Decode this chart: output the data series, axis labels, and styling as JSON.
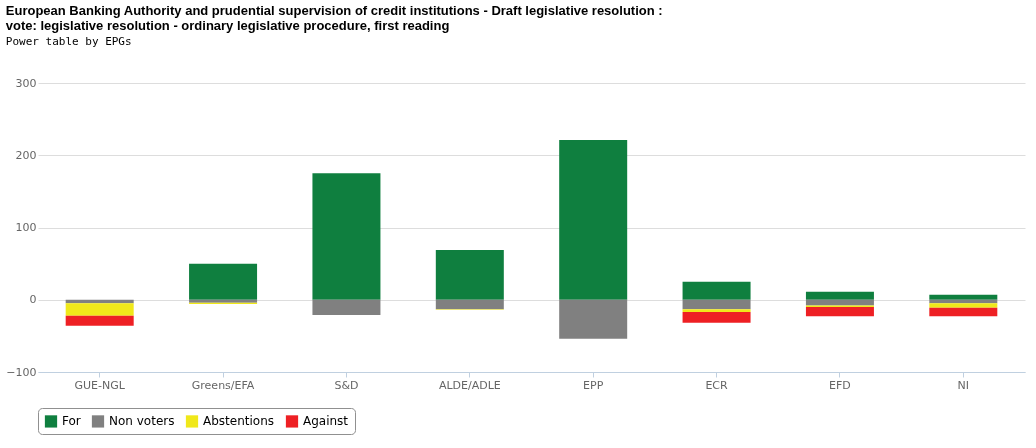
{
  "chart_data": {
    "type": "bar",
    "stacked": true,
    "title": "European Banking Authority and prudential supervision of credit institutions - Draft legislative resolution : vote: legislative resolution - ordinary legislative procedure, first reading",
    "subtitle": "Power table by EPGs",
    "categories": [
      "GUE-NGL",
      "Greens/EFA",
      "S&D",
      "ALDE/ADLE",
      "EPP",
      "ECR",
      "EFD",
      "NI"
    ],
    "series": [
      {
        "name": "For",
        "color": "#0f7f3f",
        "values": [
          0,
          50,
          175,
          69,
          221,
          25,
          11,
          7
        ]
      },
      {
        "name": "Non voters",
        "color": "#808080",
        "values": [
          -5,
          -4,
          -21,
          -13,
          -54,
          -13,
          -8,
          -5
        ]
      },
      {
        "name": "Abstentions",
        "color": "#f0e81a",
        "values": [
          -17,
          -2,
          0,
          -1,
          0,
          -4,
          -2,
          -6
        ]
      },
      {
        "name": "Against",
        "color": "#ee2024",
        "values": [
          -14,
          0,
          0,
          0,
          0,
          -15,
          -13,
          -12
        ]
      }
    ],
    "ylim": [
      -100,
      300
    ],
    "yticks": [
      -100,
      0,
      100,
      200,
      300
    ],
    "grid": "y",
    "legend": "bottom"
  }
}
